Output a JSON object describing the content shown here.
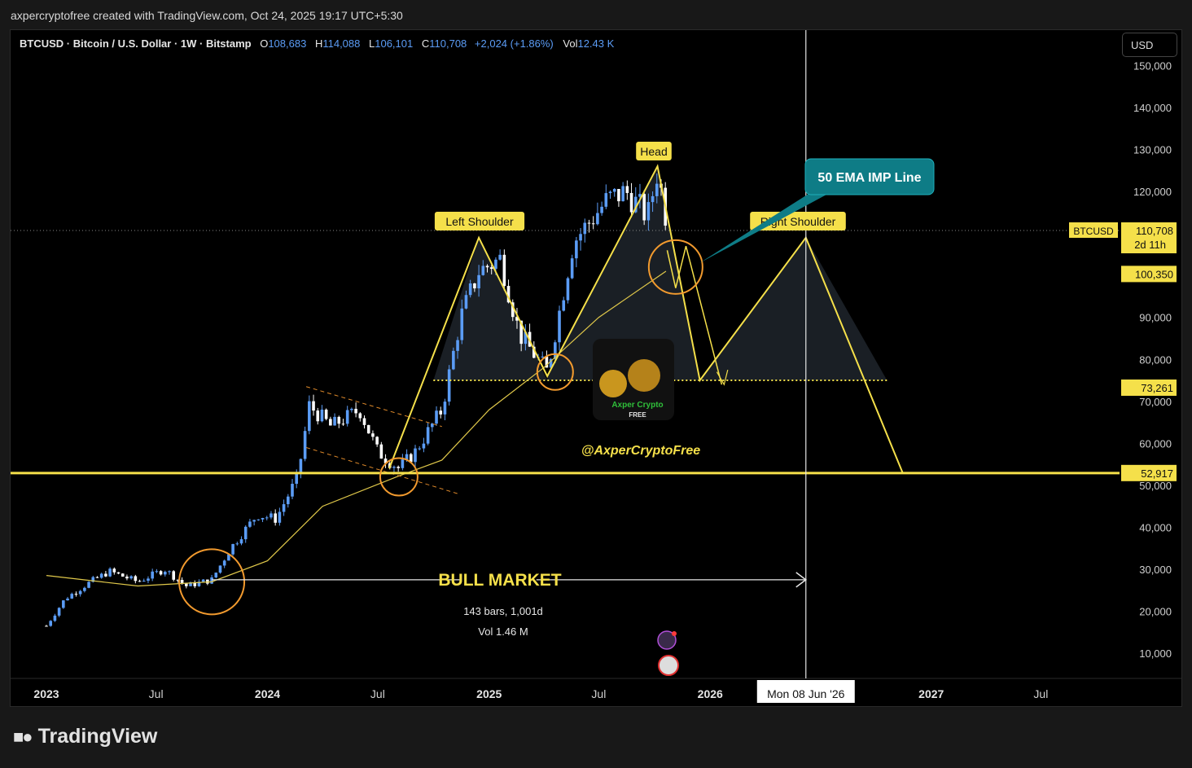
{
  "header": {
    "title": "axpercryptofree created with TradingView.com, Oct 24, 2025 19:17 UTC+5:30"
  },
  "legend": {
    "symbol": "BTCUSD · Bitcoin / U.S. Dollar · 1W · Bitstamp",
    "o_label": "O",
    "o": "108,683",
    "h_label": "H",
    "h": "114,088",
    "l_label": "L",
    "l": "106,101",
    "c_label": "C",
    "c": "110,708",
    "change": "+2,024 (+1.86%)",
    "vol_label": "Vol",
    "vol": "12.43 K"
  },
  "currency_button": "USD",
  "footer": {
    "brand": "TradingView",
    "logo_icon": "tradingview-logo-icon"
  },
  "colors": {
    "up": "#5b9cf5",
    "down": "#ffffff",
    "pattern": "#f5e04a",
    "ema": "#e0c84a",
    "circle": "#f29a2e",
    "callout": "#0e7c86"
  },
  "chart_data": {
    "type": "candlestick",
    "timeframe": "1W",
    "y_axis": {
      "ticks": [
        10000,
        20000,
        30000,
        40000,
        50000,
        60000,
        70000,
        80000,
        90000,
        100000,
        110000,
        120000,
        130000,
        140000,
        150000
      ],
      "tick_labels": [
        "10,000",
        "20,000",
        "30,000",
        "40,000",
        "50,000",
        "60,000",
        "70,000",
        "80,000",
        "90,000",
        "100,000",
        "110,000",
        "120,000",
        "130,000",
        "140,000",
        "150,000"
      ],
      "range": [
        3000,
        153000
      ]
    },
    "x_axis": {
      "tick_labels": [
        "2023",
        "Jul",
        "2024",
        "Jul",
        "2025",
        "Jul",
        "2026",
        "2027",
        "Jul"
      ],
      "tick_dates": [
        "2023-01-01",
        "2023-07-01",
        "2024-01-01",
        "2024-07-01",
        "2025-01-01",
        "2025-07-01",
        "2026-01-01",
        "2027-01-01",
        "2027-07-01"
      ]
    },
    "price_series_approx": [
      [
        "2023-01-01",
        16500
      ],
      [
        "2023-02-01",
        23000
      ],
      [
        "2023-03-15",
        27000
      ],
      [
        "2023-04-15",
        29500
      ],
      [
        "2023-06-01",
        27000
      ],
      [
        "2023-07-15",
        30000
      ],
      [
        "2023-08-20",
        26000
      ],
      [
        "2023-10-01",
        27500
      ],
      [
        "2023-11-01",
        35000
      ],
      [
        "2023-12-15",
        43000
      ],
      [
        "2024-01-15",
        42000
      ],
      [
        "2024-02-20",
        52000
      ],
      [
        "2024-03-10",
        69000
      ],
      [
        "2024-04-15",
        64000
      ],
      [
        "2024-06-01",
        68000
      ],
      [
        "2024-07-01",
        58000
      ],
      [
        "2024-08-05",
        54000
      ],
      [
        "2024-09-01",
        58000
      ],
      [
        "2024-10-15",
        68000
      ],
      [
        "2024-11-15",
        90000
      ],
      [
        "2024-12-15",
        101000
      ],
      [
        "2025-01-20",
        104000
      ],
      [
        "2025-02-20",
        86000
      ],
      [
        "2025-04-07",
        77000
      ],
      [
        "2025-05-20",
        108000
      ],
      [
        "2025-07-15",
        118000
      ],
      [
        "2025-08-15",
        120000
      ],
      [
        "2025-09-20",
        114000
      ],
      [
        "2025-10-06",
        125000
      ],
      [
        "2025-10-24",
        110708
      ]
    ],
    "ema50_approx": [
      [
        "2023-01-01",
        28500
      ],
      [
        "2023-06-01",
        26000
      ],
      [
        "2023-10-01",
        27000
      ],
      [
        "2024-01-01",
        32000
      ],
      [
        "2024-04-01",
        45000
      ],
      [
        "2024-08-01",
        52000
      ],
      [
        "2024-10-15",
        56000
      ],
      [
        "2025-01-01",
        68000
      ],
      [
        "2025-04-01",
        78000
      ],
      [
        "2025-07-01",
        90000
      ],
      [
        "2025-10-20",
        101000
      ]
    ],
    "price_labels": [
      {
        "symbol": "BTCUSD",
        "value": 110708,
        "text": "110,708",
        "countdown": "2d 11h"
      },
      {
        "value": 100350,
        "text": "100,350"
      },
      {
        "value": 73261,
        "text": "73,261"
      },
      {
        "value": 52917,
        "text": "52,917"
      }
    ],
    "pattern": {
      "name": "head and shoulders",
      "labels": {
        "left_shoulder": "Left Shoulder",
        "head": "Head",
        "right_shoulder": "Right Shoulder"
      },
      "points": [
        [
          "2024-07-20",
          54000
        ],
        [
          "2024-12-15",
          109000
        ],
        [
          "2025-04-07",
          76000
        ],
        [
          "2025-10-06",
          126000
        ],
        [
          "2025-12-15",
          75000
        ],
        [
          "2026-06-08",
          109000
        ],
        [
          "2026-11-15",
          52917
        ]
      ],
      "neckline": 75000
    },
    "support_line": {
      "value": 52917
    },
    "annotations": {
      "callout": "50 EMA IMP Line",
      "range_label": "BULL MARKET",
      "range_bars": "143 bars, 1,001d",
      "range_vol": "Vol 1.46 M",
      "watermark": "@AxperCryptoFree",
      "logo_text": "Axper Crypto",
      "logo_sub": "FREE",
      "crosshair_date": "Mon 08 Jun '26"
    }
  }
}
